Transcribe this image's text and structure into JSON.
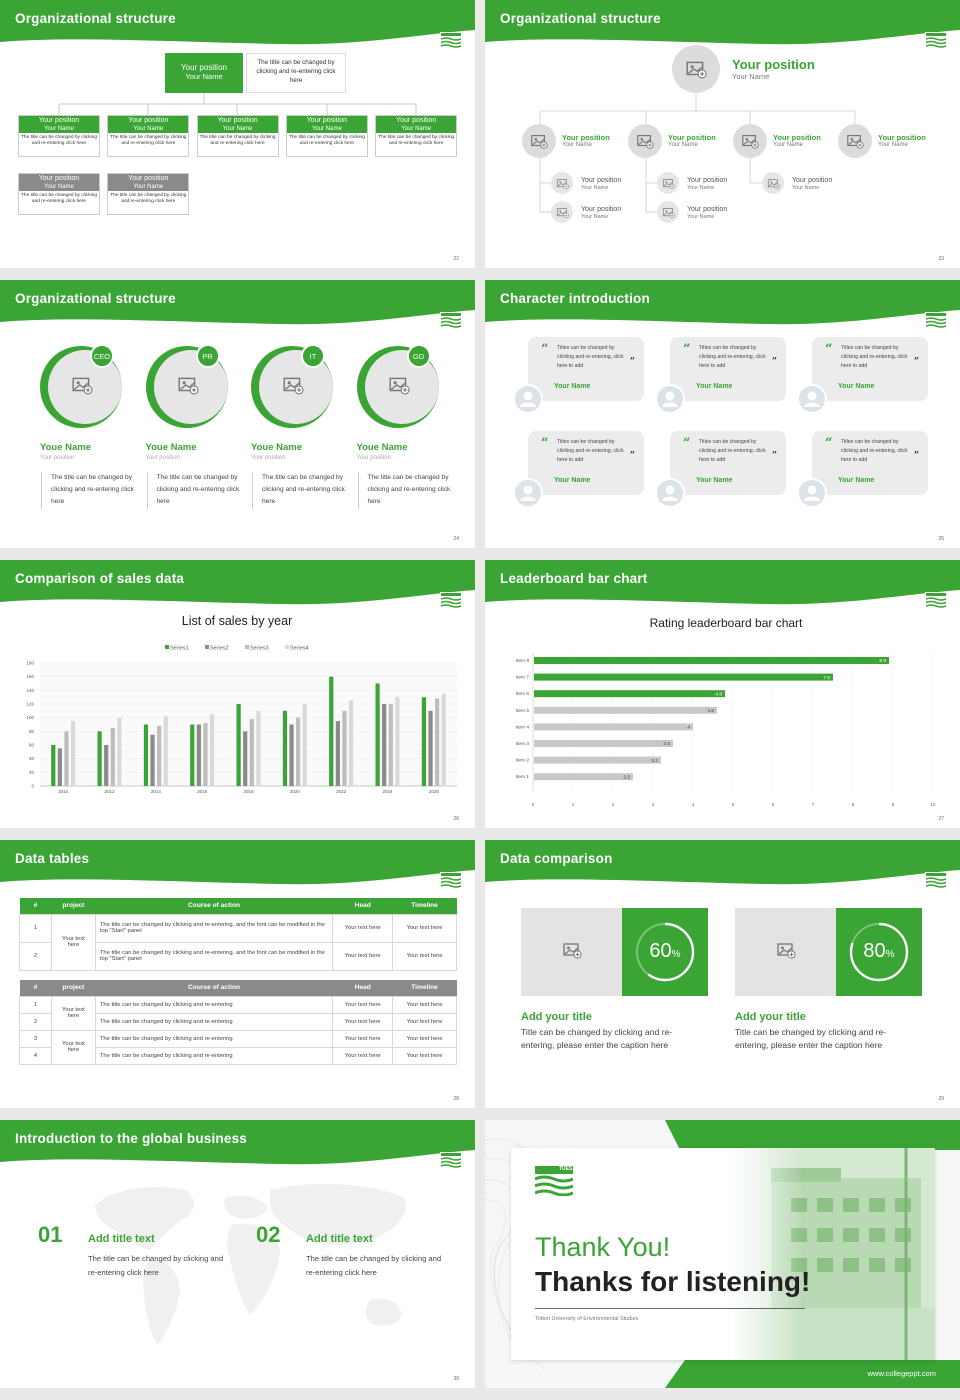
{
  "colors": {
    "brand_green": "#3aa434",
    "gray": "#8a8a8a",
    "light_gray": "#c8c8c8"
  },
  "slides": {
    "s22": {
      "title": "Organizational structure",
      "page": "22",
      "top": {
        "position": "Your position",
        "name": "Your Name",
        "desc": "The title can be changed by clicking and re-entering click here"
      },
      "row_green": [
        {
          "position": "Your position",
          "name": "Your Name",
          "desc": "The title can be changed by clicking and re-entering click here"
        },
        {
          "position": "Your position",
          "name": "Your Name",
          "desc": "The title can be changed by clicking and re-entering click here"
        },
        {
          "position": "Your position",
          "name": "Your Name",
          "desc": "The title can be changed by clicking and re-entering click here"
        },
        {
          "position": "Your position",
          "name": "Your Name",
          "desc": "The title can be changed by clicking and re-entering click here"
        },
        {
          "position": "Your position",
          "name": "Your Name",
          "desc": "The title can be changed by clicking and re-entering click here"
        }
      ],
      "row_gray": [
        {
          "position": "Your position",
          "name": "Your Name",
          "desc": "The title can be changed by clicking and re-entering click here"
        },
        {
          "position": "Your position",
          "name": "Your Name",
          "desc": "The title can be changed by clicking and re-entering click here"
        }
      ]
    },
    "s23": {
      "title": "Organizational structure",
      "page": "23",
      "top": {
        "position": "Your position",
        "name": "Your Name"
      },
      "level2": [
        {
          "position": "Your position",
          "name": "Your Name"
        },
        {
          "position": "Your position",
          "name": "Your Name"
        },
        {
          "position": "Your position",
          "name": "Your Name"
        },
        {
          "position": "Your position",
          "name": "Your Name"
        }
      ],
      "level3": [
        {
          "position": "Your position",
          "name": "Your Name"
        },
        {
          "position": "Your position",
          "name": "Your Name"
        },
        {
          "position": "Your position",
          "name": "Your Name"
        },
        {
          "position": "Your position",
          "name": "Your Name"
        },
        {
          "position": "Your position",
          "name": "Your Name"
        }
      ]
    },
    "s24": {
      "title": "Organizational structure",
      "page": "24",
      "people": [
        {
          "badge": "CEO",
          "name": "Youe Name",
          "position": "Your position",
          "desc": "The title can be changed by clicking and re-entering click here"
        },
        {
          "badge": "PR",
          "name": "Youe Name",
          "position": "Your position",
          "desc": "The title can be changed by clicking and re-entering click here"
        },
        {
          "badge": "IT",
          "name": "Youe Name",
          "position": "Your position",
          "desc": "The title can be changed by clicking and re-entering click here"
        },
        {
          "badge": "GD",
          "name": "Youe Name",
          "position": "Your position",
          "desc": "The title can be changed by clicking and re-entering click here"
        }
      ]
    },
    "s25": {
      "title": "Character introduction",
      "page": "25",
      "cards": [
        {
          "text": "Titles can be changed by clicking and re-entering, click here to add",
          "name": "Your Name"
        },
        {
          "text": "Titles can be changed by clicking and re-entering, click here to add",
          "name": "Your Name"
        },
        {
          "text": "Titles can be changed by clicking and re-entering, click here to add",
          "name": "Your Name"
        },
        {
          "text": "Titles can be changed by clicking and re-entering, click here to add",
          "name": "Your Name"
        },
        {
          "text": "Titles can be changed by clicking and re-entering, click here to add",
          "name": "Your Name"
        },
        {
          "text": "Titles can be changed by clicking and re-entering, click here to add",
          "name": "Your Name"
        }
      ]
    },
    "s26": {
      "title": "Comparison of sales data",
      "page": "26"
    },
    "s27": {
      "title": "Leaderboard bar chart",
      "page": "27"
    },
    "s28": {
      "title": "Data tables",
      "page": "28",
      "headers": [
        "#",
        "project",
        "Course of action",
        "Head",
        "Timeline"
      ],
      "table1": {
        "group": "Your text here",
        "rows": [
          {
            "n": "1",
            "action": "The title can be changed by clicking and re-entering, and the font can be modified in the top \"Start\" panel",
            "head": "Your text here",
            "time": "Your text here"
          },
          {
            "n": "2",
            "action": "The title can be changed by clicking and re-entering, and the font can be modified in the top \"Start\" panel",
            "head": "Your text here",
            "time": "Your text here"
          }
        ]
      },
      "table2": {
        "groups": [
          "Your text here",
          "Your text here"
        ],
        "rows": [
          {
            "n": "1",
            "action": "The title can be changed by clicking and re-entering",
            "head": "Your text here",
            "time": "Your text here"
          },
          {
            "n": "2",
            "action": "The title can be changed by clicking and re-entering",
            "head": "Your text here",
            "time": "Your text here"
          },
          {
            "n": "3",
            "action": "The title can be changed by clicking and re-entering",
            "head": "Your text here",
            "time": "Your text here"
          },
          {
            "n": "4",
            "action": "The title can be changed by clicking and re-entering",
            "head": "Your text here",
            "time": "Your text here"
          }
        ]
      }
    },
    "s29": {
      "title": "Data comparison",
      "page": "29",
      "items": [
        {
          "value": 60,
          "label": "60",
          "unit": "%",
          "title": "Add your title",
          "desc": "Title can be changed by clicking and re-entering, please enter the caption here"
        },
        {
          "value": 80,
          "label": "80",
          "unit": "%",
          "title": "Add your title",
          "desc": "Title can be changed by clicking and re-entering, please enter the caption here"
        }
      ]
    },
    "s30": {
      "title": "Introduction to the global business",
      "page": "30",
      "items": [
        {
          "num": "01",
          "title": "Add title text",
          "desc": "The title can be changed by clicking and re-entering click here"
        },
        {
          "num": "02",
          "title": "Add title text",
          "desc": "The title can be changed by clicking and re-entering click here"
        }
      ]
    },
    "s31": {
      "logo_text": "TUES",
      "thanks": "Thank You!",
      "listening": "Thanks for listening!",
      "university": "Tottori University of Environmental Studies",
      "url": "www.collegeppt.com"
    }
  },
  "chart_data": [
    {
      "type": "bar",
      "title": "List of sales by year",
      "categories": [
        "2010",
        "2012",
        "2014",
        "2016",
        "2018",
        "2020",
        "2022",
        "2024",
        "2026"
      ],
      "series": [
        {
          "name": "Series1",
          "color": "#3aa434",
          "values": [
            60,
            80,
            90,
            90,
            120,
            110,
            160,
            150,
            130
          ]
        },
        {
          "name": "Series2",
          "color": "#8a8a8a",
          "values": [
            55,
            60,
            75,
            90,
            80,
            90,
            95,
            120,
            110
          ]
        },
        {
          "name": "Series3",
          "color": "#bdbdbd",
          "values": [
            80,
            85,
            88,
            92,
            98,
            100,
            110,
            120,
            128
          ]
        },
        {
          "name": "Series4",
          "color": "#d9d9d9",
          "values": [
            95,
            100,
            102,
            105,
            110,
            120,
            125,
            130,
            135
          ]
        }
      ],
      "ylim": [
        0,
        180
      ],
      "yticks": [
        0,
        20,
        40,
        60,
        80,
        100,
        120,
        140,
        160,
        180
      ],
      "legend": "top"
    },
    {
      "type": "bar",
      "orientation": "horizontal",
      "title": "Rating leaderboard bar chart",
      "categories": [
        "Item 8",
        "Item 7",
        "Item 6",
        "Item 5",
        "Item 4",
        "Item 3",
        "Item 2",
        "Item 1"
      ],
      "values": [
        8.9,
        7.5,
        4.8,
        4.6,
        4,
        3.5,
        3.2,
        2.5
      ],
      "labels": [
        "8.9",
        "7.5",
        "4.8",
        "4.6",
        "4",
        "3.5",
        "3.2",
        "2.5"
      ],
      "colors": [
        "#3aa434",
        "#3aa434",
        "#3aa434",
        "#c8c8c8",
        "#c8c8c8",
        "#c8c8c8",
        "#c8c8c8",
        "#c8c8c8"
      ],
      "xlim": [
        0,
        10
      ],
      "xticks": [
        0,
        1,
        2,
        3,
        4,
        5,
        6,
        7,
        8,
        9,
        10
      ]
    }
  ]
}
